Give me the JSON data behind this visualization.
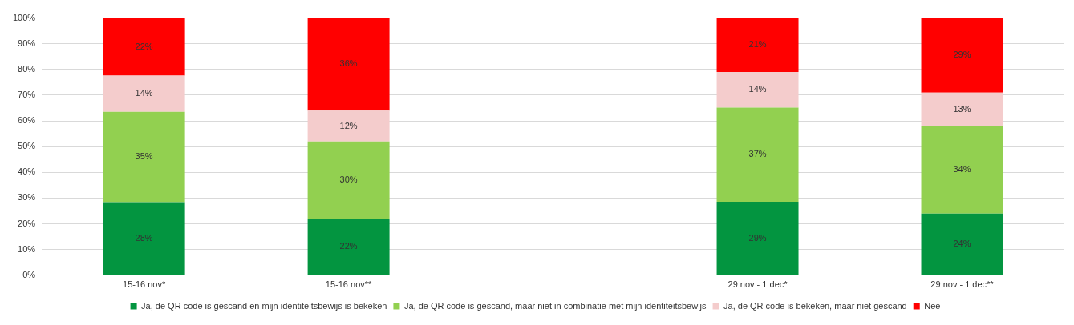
{
  "chart_data": {
    "type": "bar",
    "stacked": true,
    "categories": [
      "15-16 nov*",
      "15-16 nov**",
      null,
      "29 nov - 1 dec*",
      "29 nov - 1 dec**"
    ],
    "series": [
      {
        "name": "Ja, de QR code is gescand en mijn identiteitsbewijs is bekeken",
        "color": "#039540",
        "values": [
          28.4,
          22,
          null,
          28.6,
          24
        ],
        "value_labels": [
          "28%",
          "22%",
          null,
          "29%",
          "24%"
        ]
      },
      {
        "name": "Ja, de QR code is gescand, maar niet in combinatie met mijn identiteitsbewijs",
        "color": "#92d050",
        "values": [
          35.1,
          30,
          null,
          36.6,
          34
        ],
        "value_labels": [
          "35%",
          "30%",
          null,
          "37%",
          "34%"
        ]
      },
      {
        "name": "Ja, de QR code is bekeken, maar niet gescand",
        "color": "#f4cccc",
        "values": [
          14.1,
          12,
          null,
          13.8,
          13
        ],
        "value_labels": [
          "14%",
          "12%",
          null,
          "14%",
          "13%"
        ]
      },
      {
        "name": "Nee",
        "color": "#ff0000",
        "values": [
          22.4,
          36,
          null,
          21,
          29
        ],
        "value_labels": [
          "22%",
          "36%",
          null,
          "21%",
          "29%"
        ]
      }
    ],
    "ylim": [
      0,
      100
    ],
    "yticks": [
      {
        "value": 0,
        "label": "0%"
      },
      {
        "value": 10,
        "label": "10%"
      },
      {
        "value": 20,
        "label": "20%"
      },
      {
        "value": 30,
        "label": "30%"
      },
      {
        "value": 40,
        "label": "40%"
      },
      {
        "value": 50,
        "label": "50%"
      },
      {
        "value": 60,
        "label": "60%"
      },
      {
        "value": 70,
        "label": "70%"
      },
      {
        "value": 80,
        "label": "80%"
      },
      {
        "value": 90,
        "label": "90%"
      },
      {
        "value": 100,
        "label": "100%"
      }
    ],
    "grid": "y",
    "legend": "bottom"
  }
}
